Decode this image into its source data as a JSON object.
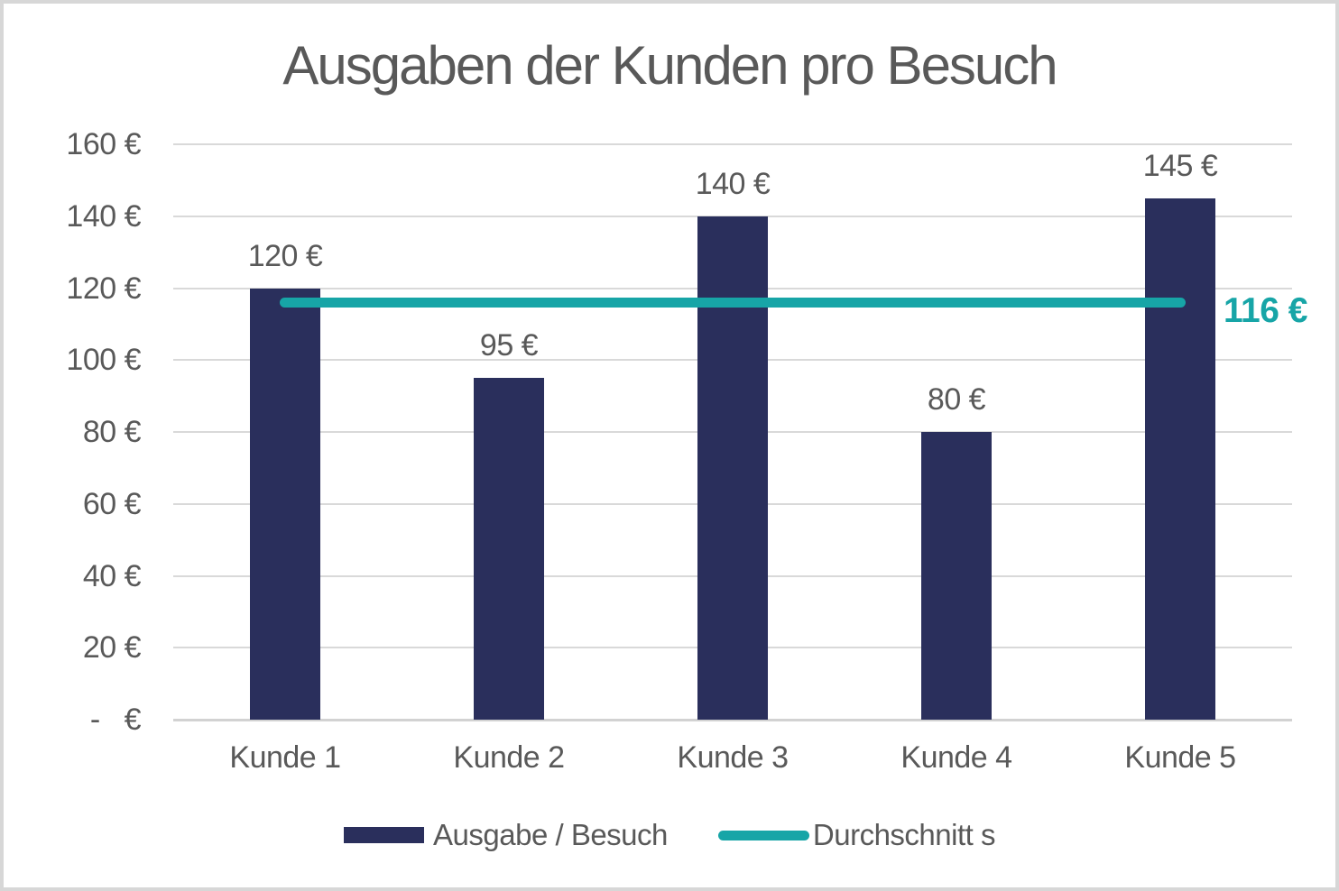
{
  "title": "Ausgaben der Kunden pro Besuch",
  "colors": {
    "bar": "#2a2f5c",
    "average_line": "#17a5a7",
    "text": "#595959",
    "gridline": "#d9d9d9"
  },
  "chart_data": {
    "type": "bar",
    "title": "Ausgaben der Kunden pro Besuch",
    "categories": [
      "Kunde 1",
      "Kunde 2",
      "Kunde 3",
      "Kunde 4",
      "Kunde 5"
    ],
    "series": [
      {
        "name": "Ausgabe / Besuch",
        "type": "bar",
        "values": [
          120,
          95,
          140,
          80,
          145
        ],
        "labels": [
          "120 €",
          "95 €",
          "140 €",
          "80 €",
          "145 €"
        ],
        "color": "#2a2f5c"
      },
      {
        "name": "Durchschnitt s",
        "type": "line",
        "value": 116,
        "label": "116 €",
        "color": "#17a5a7"
      }
    ],
    "xlabel": "",
    "ylabel": "",
    "ylim": [
      0,
      160
    ],
    "yticks": [
      {
        "value": 160,
        "label": "160 €"
      },
      {
        "value": 140,
        "label": "140 €"
      },
      {
        "value": 120,
        "label": "120 €"
      },
      {
        "value": 100,
        "label": "100 €"
      },
      {
        "value": 80,
        "label": "80 €"
      },
      {
        "value": 60,
        "label": "60 €"
      },
      {
        "value": 40,
        "label": "40 €"
      },
      {
        "value": 20,
        "label": "20 €"
      },
      {
        "value": 0,
        "label": "-   €"
      }
    ],
    "grid": true,
    "legend_position": "bottom"
  },
  "legend": {
    "items": [
      {
        "label": "Ausgabe / Besuch",
        "swatch": "bar"
      },
      {
        "label": "Durchschnitt s",
        "swatch": "line"
      }
    ]
  }
}
